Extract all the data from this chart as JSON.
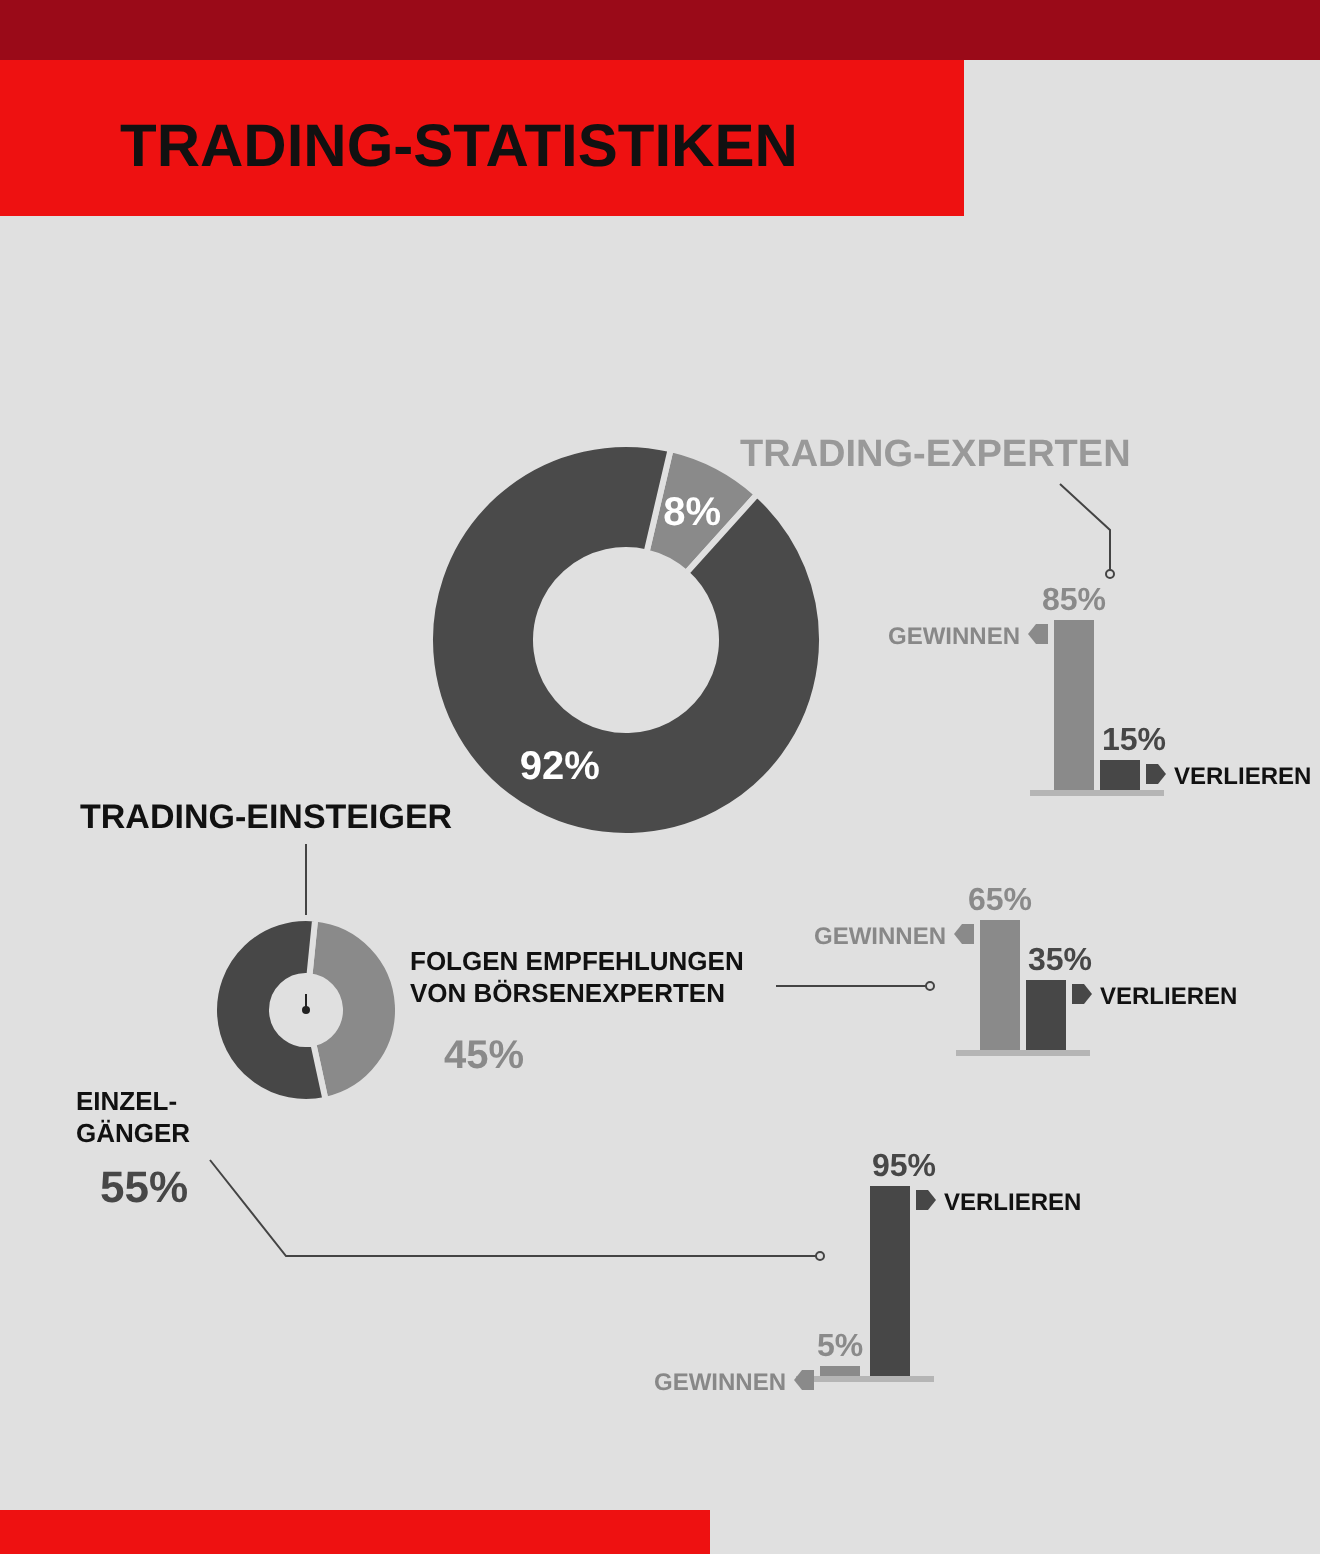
{
  "chart_data": [
    {
      "type": "donut",
      "title": "TRADING-STATISTIKEN",
      "categories": [
        null,
        null
      ],
      "values": [
        8,
        92
      ],
      "colors": [
        "#8a8a8a",
        "#4a4a4a"
      ],
      "value_labels": [
        "8%",
        "92%"
      ]
    },
    {
      "type": "bar",
      "title": "TRADING-EXPERTEN",
      "categories": [
        null
      ],
      "series": [
        {
          "name": "GEWINNEN",
          "color": "#8a8a8a",
          "values": [
            85
          ],
          "value_labels": [
            "85%"
          ]
        },
        {
          "name": "VERLIEREN",
          "color": "#474747",
          "values": [
            15
          ],
          "value_labels": [
            "15%"
          ]
        }
      ]
    },
    {
      "type": "donut",
      "title": "TRADING-EINSTEIGER",
      "categories": [
        "FOLGEN EMPFEHLUNGEN VON BÖRSENEXPERTEN",
        "EINZEL-GÄNGER"
      ],
      "values": [
        45,
        55
      ],
      "colors": [
        "#8a8a8a",
        "#474747"
      ],
      "value_labels": [
        "45%",
        "55%"
      ]
    },
    {
      "type": "bar",
      "categories": [
        null
      ],
      "series": [
        {
          "name": "GEWINNEN",
          "color": "#8a8a8a",
          "values": [
            65
          ],
          "value_labels": [
            "65%"
          ]
        },
        {
          "name": "VERLIEREN",
          "color": "#474747",
          "values": [
            35
          ],
          "value_labels": [
            "35%"
          ]
        }
      ]
    },
    {
      "type": "bar",
      "categories": [
        null
      ],
      "series": [
        {
          "name": "GEWINNEN",
          "color": "#8a8a8a",
          "values": [
            5
          ],
          "value_labels": [
            "5%"
          ]
        },
        {
          "name": "VERLIEREN",
          "color": "#474747",
          "values": [
            95
          ],
          "value_labels": [
            "95%"
          ]
        }
      ]
    }
  ]
}
